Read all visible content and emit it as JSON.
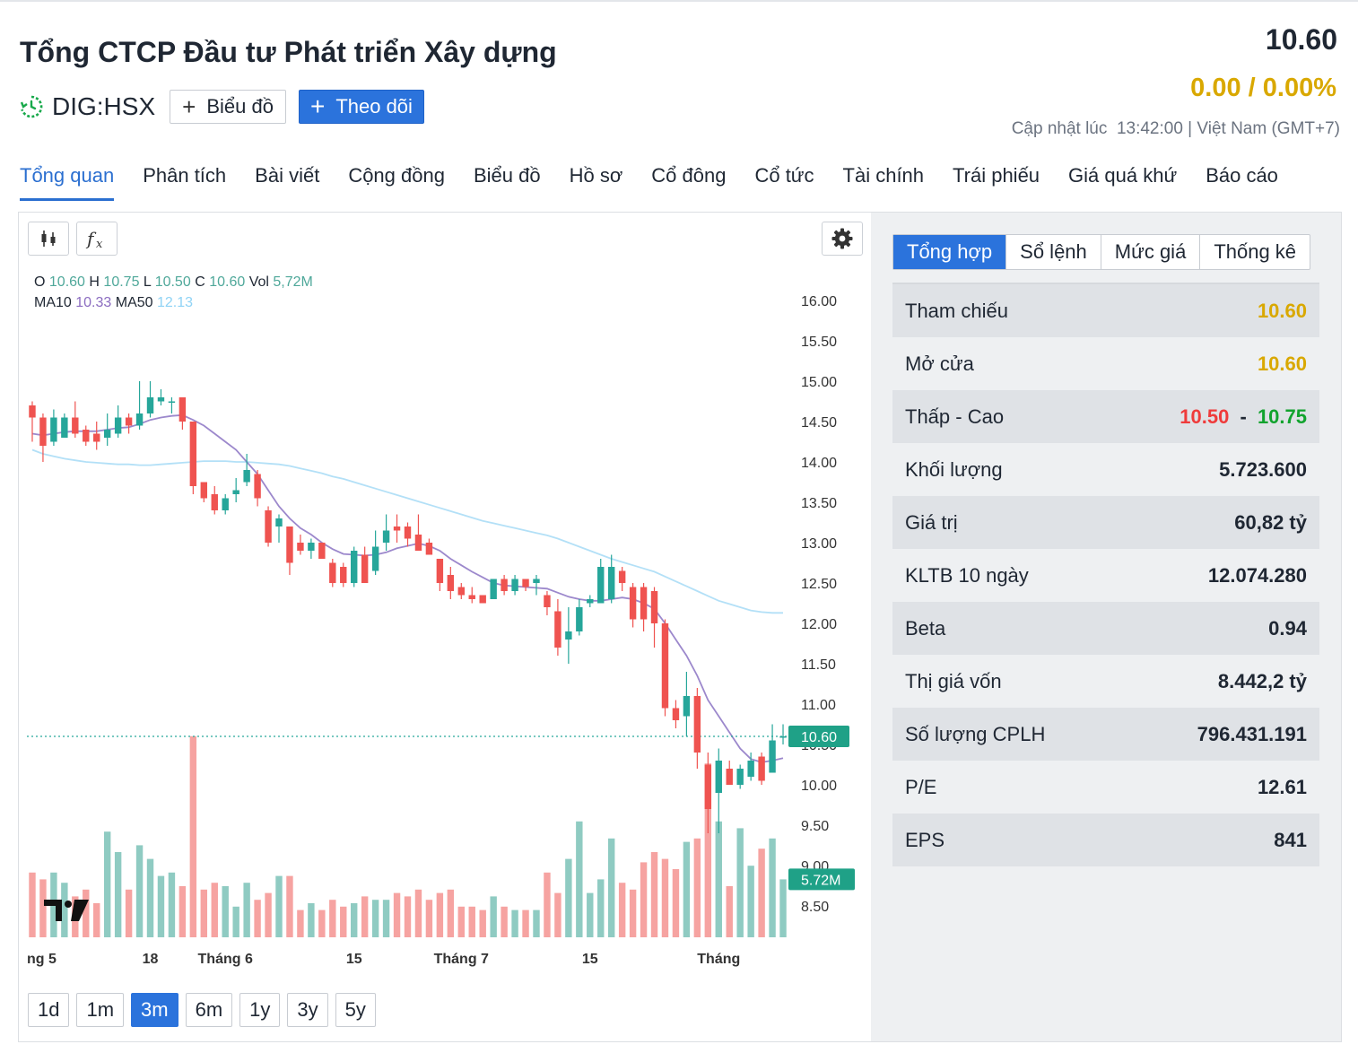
{
  "header": {
    "company_name": "Tổng CTCP Đầu tư Phát triển Xây dựng",
    "ticker": "DIG:HSX",
    "chart_button": "Biểu đồ",
    "follow_button": "Theo dõi",
    "price": "10.60",
    "change": "0.00 / 0.00%",
    "update_label": "Cập nhật lúc",
    "update_time": "13:42:00 | Việt Nam (GMT+7)"
  },
  "nav": {
    "items": [
      "Tổng quan",
      "Phân tích",
      "Bài viết",
      "Cộng đồng",
      "Biểu đồ",
      "Hồ sơ",
      "Cổ đông",
      "Cổ tức",
      "Tài chính",
      "Trái phiếu",
      "Giá quá khứ",
      "Báo cáo"
    ],
    "active": "Tổng quan"
  },
  "chart_toolbar": {
    "candles_icon": "candlestick-icon",
    "indicator_icon": "function-fx-icon",
    "settings_icon": "gear-icon"
  },
  "legend": {
    "o_label": "O",
    "o": "10.60",
    "h_label": "H",
    "h": "10.75",
    "l_label": "L",
    "l": "10.50",
    "c_label": "C",
    "c": "10.60",
    "vol_label": "Vol",
    "vol": "5,72M",
    "ma10_label": "MA10",
    "ma10": "10.33",
    "ma50_label": "MA50",
    "ma50": "12.13"
  },
  "timeframes": [
    "1d",
    "1m",
    "3m",
    "6m",
    "1y",
    "3y",
    "5y"
  ],
  "active_timeframe": "3m",
  "side": {
    "tabs": [
      "Tổng hợp",
      "Sổ lệnh",
      "Mức giá",
      "Thống kê"
    ],
    "active_tab": "Tổng hợp",
    "stats": {
      "ref_label": "Tham chiếu",
      "ref_value": "10.60",
      "open_label": "Mở cửa",
      "open_value": "10.60",
      "lowhigh_label": "Thấp - Cao",
      "low_value": "10.50",
      "dash": "-",
      "high_value": "10.75",
      "volume_label": "Khối lượng",
      "volume_value": "5.723.600",
      "value_label": "Giá trị",
      "value_value": "60,82 tỷ",
      "avgvol_label": "KLTB 10 ngày",
      "avgvol_value": "12.074.280",
      "beta_label": "Beta",
      "beta_value": "0.94",
      "mktcap_label": "Thị giá vốn",
      "mktcap_value": "8.442,2 tỷ",
      "shares_label": "Số lượng CPLH",
      "shares_value": "796.431.191",
      "pe_label": "P/E",
      "pe_value": "12.61",
      "eps_label": "EPS",
      "eps_value": "841"
    }
  },
  "colors": {
    "up": "#26a69a",
    "down": "#ef5350",
    "accent": "#2b73dc",
    "ref_yellow": "#d9a800",
    "ma10": "#9c88cc",
    "ma50": "#b3e0f7"
  },
  "chart_data": {
    "type": "candlestick",
    "y_ticks": [
      "16.00",
      "15.50",
      "15.00",
      "14.50",
      "14.00",
      "13.50",
      "13.00",
      "12.50",
      "12.00",
      "11.50",
      "11.00",
      "10.50",
      "10.00",
      "9.50",
      "9.00",
      "8.50"
    ],
    "ylim": [
      8.5,
      16.0
    ],
    "x_labels": [
      "ng 5",
      "18",
      "Tháng 6",
      "15",
      "Tháng 7",
      "15",
      "Tháng"
    ],
    "x_label_index": [
      0,
      11,
      18,
      30,
      40,
      52,
      64
    ],
    "last_price_label": "10.60",
    "last_volume_label": "5.72M",
    "reference_price": 10.6,
    "candles": [
      [
        14.7,
        14.55,
        14.75,
        14.25,
        1.9
      ],
      [
        14.55,
        14.2,
        14.6,
        14.0,
        1.7
      ],
      [
        14.25,
        14.55,
        14.65,
        14.2,
        1.9
      ],
      [
        14.3,
        14.55,
        14.6,
        14.3,
        1.6
      ],
      [
        14.55,
        14.35,
        14.75,
        14.3,
        1.2
      ],
      [
        14.4,
        14.25,
        14.45,
        14.2,
        1.4
      ],
      [
        14.35,
        14.25,
        14.5,
        14.15,
        1.0
      ],
      [
        14.3,
        14.4,
        14.6,
        14.2,
        3.1
      ],
      [
        14.35,
        14.55,
        14.7,
        14.3,
        2.5
      ],
      [
        14.55,
        14.45,
        14.6,
        14.35,
        1.4
      ],
      [
        14.45,
        14.6,
        15.0,
        14.4,
        2.7
      ],
      [
        14.6,
        14.8,
        15.0,
        14.55,
        2.3
      ],
      [
        14.75,
        14.8,
        14.9,
        14.7,
        1.8
      ],
      [
        14.75,
        14.75,
        14.8,
        14.6,
        1.9
      ],
      [
        14.8,
        14.5,
        14.8,
        14.4,
        1.5
      ],
      [
        14.5,
        13.7,
        14.5,
        13.6,
        5.9
      ],
      [
        13.75,
        13.55,
        13.75,
        13.5,
        1.4
      ],
      [
        13.6,
        13.4,
        13.7,
        13.35,
        1.6
      ],
      [
        13.4,
        13.55,
        13.6,
        13.35,
        1.5
      ],
      [
        13.6,
        13.65,
        13.8,
        13.5,
        0.9
      ],
      [
        13.75,
        13.9,
        14.1,
        13.7,
        1.6
      ],
      [
        13.85,
        13.55,
        13.9,
        13.45,
        1.1
      ],
      [
        13.4,
        13.0,
        13.45,
        12.95,
        1.3
      ],
      [
        13.2,
        13.3,
        13.35,
        13.0,
        1.8
      ],
      [
        13.2,
        12.75,
        13.2,
        12.6,
        1.8
      ],
      [
        13.0,
        12.9,
        13.1,
        12.85,
        0.8
      ],
      [
        12.9,
        13.0,
        13.05,
        12.8,
        1.0
      ],
      [
        13.0,
        12.8,
        13.0,
        12.8,
        0.8
      ],
      [
        12.75,
        12.5,
        12.8,
        12.45,
        1.1
      ],
      [
        12.7,
        12.5,
        12.75,
        12.45,
        0.9
      ],
      [
        12.5,
        12.9,
        12.95,
        12.45,
        1.0
      ],
      [
        12.85,
        12.5,
        12.95,
        12.5,
        1.2
      ],
      [
        12.65,
        12.95,
        13.15,
        12.6,
        1.1
      ],
      [
        13.0,
        13.15,
        13.35,
        12.9,
        1.1
      ],
      [
        13.2,
        13.15,
        13.35,
        13.0,
        1.3
      ],
      [
        13.2,
        13.05,
        13.25,
        12.95,
        1.2
      ],
      [
        13.1,
        12.9,
        13.35,
        12.9,
        1.4
      ],
      [
        13.0,
        12.85,
        13.05,
        12.85,
        1.1
      ],
      [
        12.8,
        12.5,
        12.8,
        12.4,
        1.3
      ],
      [
        12.6,
        12.4,
        12.7,
        12.3,
        1.4
      ],
      [
        12.45,
        12.35,
        12.5,
        12.3,
        0.9
      ],
      [
        12.35,
        12.3,
        12.45,
        12.25,
        0.9
      ],
      [
        12.35,
        12.25,
        12.35,
        12.25,
        0.8
      ],
      [
        12.3,
        12.55,
        12.55,
        12.3,
        1.2
      ],
      [
        12.55,
        12.4,
        12.6,
        12.35,
        0.9
      ],
      [
        12.4,
        12.55,
        12.6,
        12.35,
        0.8
      ],
      [
        12.55,
        12.45,
        12.55,
        12.4,
        0.8
      ],
      [
        12.5,
        12.55,
        12.6,
        12.35,
        0.8
      ],
      [
        12.35,
        12.2,
        12.4,
        12.1,
        1.9
      ],
      [
        12.15,
        11.7,
        12.3,
        11.6,
        1.3
      ],
      [
        11.8,
        11.9,
        12.2,
        11.5,
        2.3
      ],
      [
        11.9,
        12.2,
        12.3,
        11.85,
        3.4
      ],
      [
        12.25,
        12.3,
        12.35,
        12.2,
        1.3
      ],
      [
        12.25,
        12.7,
        12.8,
        12.25,
        1.7
      ],
      [
        12.3,
        12.7,
        12.85,
        12.25,
        2.9
      ],
      [
        12.65,
        12.5,
        12.7,
        12.4,
        1.6
      ],
      [
        12.45,
        12.05,
        12.5,
        11.95,
        1.4
      ],
      [
        12.45,
        12.05,
        12.5,
        11.9,
        2.2
      ],
      [
        12.4,
        12.0,
        12.45,
        11.7,
        2.5
      ],
      [
        12.0,
        10.95,
        12.05,
        10.85,
        2.3
      ],
      [
        10.95,
        10.8,
        11.05,
        10.7,
        2.0
      ],
      [
        10.85,
        11.1,
        11.4,
        10.6,
        2.8
      ],
      [
        11.1,
        10.4,
        11.2,
        10.2,
        2.9
      ],
      [
        10.25,
        9.7,
        10.4,
        9.4,
        5.1
      ],
      [
        9.9,
        10.3,
        10.45,
        9.4,
        3.4
      ],
      [
        10.2,
        10.0,
        10.3,
        10.0,
        1.5
      ],
      [
        10.0,
        10.2,
        10.25,
        9.95,
        3.2
      ],
      [
        10.1,
        10.3,
        10.4,
        10.05,
        2.1
      ],
      [
        10.35,
        10.05,
        10.4,
        10.0,
        2.6
      ],
      [
        10.15,
        10.55,
        10.75,
        10.15,
        2.9
      ],
      [
        10.6,
        10.6,
        10.75,
        10.5,
        1.7
      ]
    ],
    "ma10": [
      14.35,
      14.33,
      14.35,
      14.37,
      14.38,
      14.38,
      14.38,
      14.4,
      14.42,
      14.43,
      14.47,
      14.52,
      14.55,
      14.57,
      14.58,
      14.52,
      14.45,
      14.35,
      14.25,
      14.15,
      14.0,
      13.85,
      13.65,
      13.45,
      13.3,
      13.18,
      13.1,
      13.0,
      12.92,
      12.86,
      12.85,
      12.84,
      12.85,
      12.88,
      12.93,
      12.96,
      12.99,
      12.96,
      12.9,
      12.8,
      12.72,
      12.64,
      12.57,
      12.5,
      12.47,
      12.46,
      12.45,
      12.44,
      12.43,
      12.38,
      12.33,
      12.3,
      12.28,
      12.28,
      12.3,
      12.32,
      12.3,
      12.25,
      12.18,
      12.0,
      11.8,
      11.6,
      11.35,
      11.05,
      10.85,
      10.65,
      10.45,
      10.32,
      10.28,
      10.3,
      10.33
    ],
    "ma50": [
      14.15,
      14.1,
      14.07,
      14.04,
      14.02,
      14.0,
      13.99,
      13.98,
      13.97,
      13.97,
      13.96,
      13.96,
      13.97,
      13.98,
      13.99,
      14.0,
      14.01,
      14.01,
      14.01,
      14.0,
      14.0,
      13.99,
      13.98,
      13.97,
      13.95,
      13.92,
      13.89,
      13.86,
      13.82,
      13.79,
      13.75,
      13.71,
      13.67,
      13.63,
      13.59,
      13.55,
      13.51,
      13.47,
      13.43,
      13.39,
      13.35,
      13.31,
      13.27,
      13.24,
      13.21,
      13.18,
      13.15,
      13.12,
      13.09,
      13.05,
      13.0,
      12.95,
      12.9,
      12.85,
      12.8,
      12.76,
      12.72,
      12.68,
      12.64,
      12.58,
      12.52,
      12.46,
      12.4,
      12.34,
      12.28,
      12.24,
      12.2,
      12.16,
      12.14,
      12.13,
      12.13
    ]
  }
}
